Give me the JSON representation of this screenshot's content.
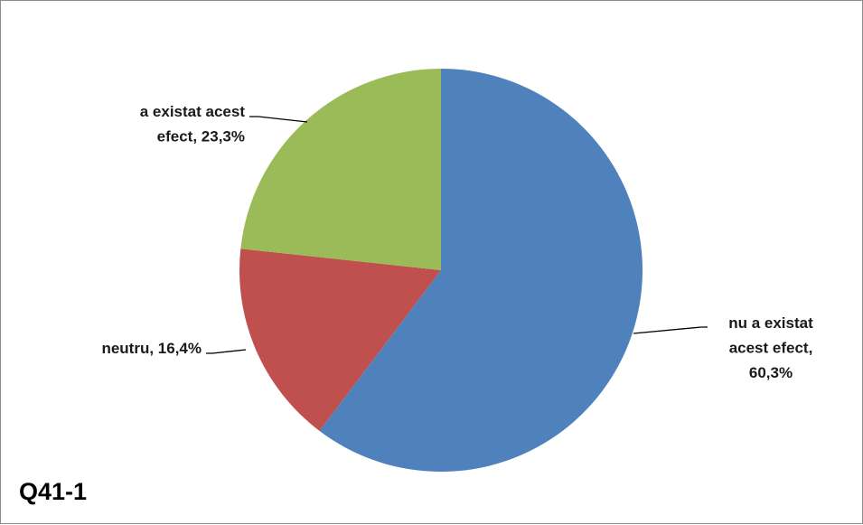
{
  "chart_data": {
    "type": "pie",
    "caption": "Q41-1",
    "slices": [
      {
        "label_lines": [
          "nu a existat",
          "acest efect,",
          "60,3%"
        ],
        "value": 60.3,
        "color": "#4f81bd"
      },
      {
        "label_lines": [
          "neutru, 16,4%"
        ],
        "value": 16.4,
        "color": "#c0504d"
      },
      {
        "label_lines": [
          "a existat acest",
          "efect, 23,3%"
        ],
        "value": 23.3,
        "color": "#9bbb59"
      }
    ]
  }
}
